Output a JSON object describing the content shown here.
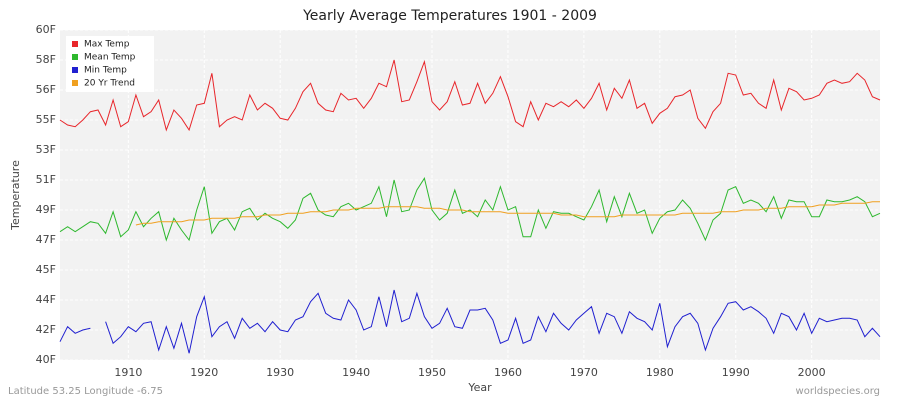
{
  "chart_data": {
    "type": "line",
    "title": "Yearly Average Temperatures 1901 - 2009",
    "x_label": "Year",
    "y_label": "Temperature",
    "footer_left": "Latitude 53.25 Longitude -6.75",
    "footer_right": "worldspecies.org",
    "xlim": [
      1901,
      2009
    ],
    "xticks": [
      1910,
      1920,
      1930,
      1940,
      1950,
      1960,
      1970,
      1980,
      1990,
      2000
    ],
    "ylim": [
      40.1,
      59.9
    ],
    "yticks": [
      {
        "value": 40.1,
        "label": "40F"
      },
      {
        "value": 41.9,
        "label": "42F"
      },
      {
        "value": 43.7,
        "label": "44F"
      },
      {
        "value": 45.5,
        "label": "45F"
      },
      {
        "value": 47.3,
        "label": "47F"
      },
      {
        "value": 49.1,
        "label": "49F"
      },
      {
        "value": 50.9,
        "label": "51F"
      },
      {
        "value": 52.7,
        "label": "53F"
      },
      {
        "value": 54.5,
        "label": "55F"
      },
      {
        "value": 56.3,
        "label": "56F"
      },
      {
        "value": 58.1,
        "label": "58F"
      },
      {
        "value": 59.9,
        "label": "60F"
      }
    ],
    "grid": true,
    "legend_position": "top-left",
    "x": [
      1901,
      1902,
      1903,
      1904,
      1905,
      1906,
      1907,
      1908,
      1909,
      1910,
      1911,
      1912,
      1913,
      1914,
      1915,
      1916,
      1917,
      1918,
      1919,
      1920,
      1921,
      1922,
      1923,
      1924,
      1925,
      1926,
      1927,
      1928,
      1929,
      1930,
      1931,
      1932,
      1933,
      1934,
      1935,
      1936,
      1937,
      1938,
      1939,
      1940,
      1941,
      1942,
      1943,
      1944,
      1945,
      1946,
      1947,
      1948,
      1949,
      1950,
      1951,
      1952,
      1953,
      1954,
      1955,
      1956,
      1957,
      1958,
      1959,
      1960,
      1961,
      1962,
      1963,
      1964,
      1965,
      1966,
      1967,
      1968,
      1969,
      1970,
      1971,
      1972,
      1973,
      1974,
      1975,
      1976,
      1977,
      1978,
      1979,
      1980,
      1981,
      1982,
      1983,
      1984,
      1985,
      1986,
      1987,
      1988,
      1989,
      1990,
      1991,
      1992,
      1993,
      1994,
      1995,
      1996,
      1997,
      1998,
      1999,
      2000,
      2001,
      2002,
      2003,
      2004,
      2005,
      2006,
      2007,
      2008,
      2009
    ],
    "series": [
      {
        "name": "Max Temp",
        "color": "#e8262b",
        "values": [
          54.5,
          54.2,
          54.1,
          54.5,
          55.0,
          55.1,
          54.2,
          55.7,
          54.1,
          54.4,
          56.0,
          54.7,
          55.0,
          55.7,
          53.9,
          55.1,
          54.6,
          53.9,
          55.4,
          55.5,
          57.3,
          54.1,
          54.5,
          54.7,
          54.5,
          56.0,
          55.1,
          55.5,
          55.2,
          54.6,
          54.5,
          55.2,
          56.2,
          56.7,
          55.5,
          55.1,
          55.0,
          56.1,
          55.7,
          55.8,
          55.2,
          55.8,
          56.7,
          56.5,
          58.1,
          55.6,
          55.7,
          56.8,
          58.0,
          55.6,
          55.1,
          55.6,
          56.8,
          55.4,
          55.5,
          56.7,
          55.5,
          56.1,
          57.1,
          55.9,
          54.4,
          54.1,
          55.6,
          54.5,
          55.5,
          55.3,
          55.6,
          55.3,
          55.7,
          55.2,
          55.8,
          56.7,
          55.1,
          56.4,
          55.8,
          56.9,
          55.2,
          55.5,
          54.3,
          54.9,
          55.2,
          55.9,
          56.0,
          56.3,
          54.6,
          54.0,
          55.0,
          55.5,
          57.3,
          57.2,
          56.0,
          56.1,
          55.5,
          55.2,
          56.9,
          55.1,
          56.4,
          56.2,
          55.7,
          55.8,
          56.0,
          56.7,
          56.9,
          56.7,
          56.8,
          57.3,
          56.9,
          55.9,
          55.7
        ]
      },
      {
        "name": "Mean Temp",
        "color": "#2eb82e",
        "values": [
          47.8,
          48.1,
          47.8,
          48.1,
          48.4,
          48.3,
          47.7,
          49.0,
          47.5,
          47.9,
          49.0,
          48.1,
          48.6,
          49.0,
          47.3,
          48.6,
          47.9,
          47.3,
          49.1,
          50.5,
          47.7,
          48.4,
          48.6,
          47.9,
          49.0,
          49.2,
          48.5,
          48.9,
          48.6,
          48.4,
          48.0,
          48.5,
          49.8,
          50.1,
          49.1,
          48.8,
          48.7,
          49.3,
          49.5,
          49.1,
          49.3,
          49.5,
          50.5,
          48.7,
          50.9,
          49.0,
          49.1,
          50.3,
          51.0,
          49.1,
          48.5,
          48.9,
          50.3,
          48.9,
          49.1,
          48.7,
          49.7,
          49.1,
          50.5,
          49.1,
          49.3,
          47.5,
          47.5,
          49.1,
          48.0,
          49.0,
          48.9,
          48.9,
          48.7,
          48.5,
          49.3,
          50.3,
          48.4,
          49.9,
          48.7,
          50.1,
          48.9,
          49.1,
          47.7,
          48.6,
          49.0,
          49.1,
          49.7,
          49.2,
          48.3,
          47.3,
          48.5,
          48.9,
          50.3,
          50.5,
          49.5,
          49.7,
          49.5,
          49.0,
          49.9,
          48.6,
          49.7,
          49.6,
          49.6,
          48.7,
          48.7,
          49.7,
          49.6,
          49.6,
          49.7,
          49.9,
          49.6,
          48.7,
          48.9
        ]
      },
      {
        "name": "Min Temp",
        "color": "#2020d0",
        "values": [
          41.2,
          42.1,
          41.7,
          41.9,
          42.0,
          null,
          42.4,
          41.1,
          41.5,
          42.1,
          41.8,
          42.3,
          42.4,
          40.7,
          42.1,
          40.8,
          42.3,
          40.5,
          42.7,
          43.9,
          41.5,
          42.1,
          42.4,
          41.4,
          42.6,
          42.0,
          42.3,
          41.8,
          42.4,
          41.9,
          41.8,
          42.5,
          42.7,
          43.6,
          44.1,
          42.9,
          42.6,
          42.5,
          43.7,
          43.1,
          41.9,
          42.1,
          43.9,
          42.1,
          44.3,
          42.4,
          42.6,
          44.1,
          42.7,
          42.0,
          42.3,
          43.2,
          42.1,
          42.0,
          43.1,
          43.1,
          43.2,
          42.5,
          41.1,
          41.3,
          42.6,
          41.1,
          41.3,
          42.7,
          41.8,
          42.9,
          42.3,
          41.9,
          42.5,
          42.9,
          43.3,
          41.7,
          42.9,
          42.7,
          41.7,
          43.0,
          42.6,
          42.4,
          41.9,
          43.5,
          40.9,
          42.1,
          42.7,
          42.9,
          42.3,
          40.7,
          42.0,
          42.7,
          43.5,
          43.6,
          43.1,
          43.3,
          43.0,
          42.6,
          41.7,
          42.9,
          42.7,
          41.9,
          42.9,
          41.7,
          42.6,
          42.4,
          42.5,
          42.6,
          42.6,
          42.5,
          41.5,
          42.0,
          41.5
        ]
      },
      {
        "name": "20 Yr Trend",
        "color": "#f0a020",
        "values": [
          null,
          null,
          null,
          null,
          null,
          null,
          null,
          null,
          null,
          null,
          48.2,
          48.3,
          48.3,
          48.4,
          48.4,
          48.4,
          48.4,
          48.5,
          48.5,
          48.5,
          48.6,
          48.6,
          48.6,
          48.6,
          48.7,
          48.7,
          48.7,
          48.8,
          48.8,
          48.8,
          48.9,
          48.9,
          48.9,
          49.0,
          49.0,
          49.0,
          49.1,
          49.1,
          49.1,
          49.2,
          49.2,
          49.2,
          49.2,
          49.3,
          49.3,
          49.3,
          49.3,
          49.3,
          49.2,
          49.2,
          49.2,
          49.1,
          49.1,
          49.1,
          49.0,
          49.0,
          49.0,
          49.0,
          49.0,
          48.9,
          48.9,
          48.9,
          48.9,
          48.9,
          48.9,
          48.9,
          48.8,
          48.8,
          48.8,
          48.7,
          48.7,
          48.7,
          48.7,
          48.7,
          48.8,
          48.8,
          48.8,
          48.8,
          48.8,
          48.8,
          48.8,
          48.8,
          48.9,
          48.9,
          48.9,
          48.9,
          48.9,
          49.0,
          49.0,
          49.0,
          49.1,
          49.1,
          49.1,
          49.2,
          49.2,
          49.2,
          49.3,
          49.3,
          49.3,
          49.3,
          49.4,
          49.4,
          49.4,
          49.5,
          49.5,
          49.5,
          49.5,
          49.6,
          49.6
        ]
      }
    ]
  }
}
